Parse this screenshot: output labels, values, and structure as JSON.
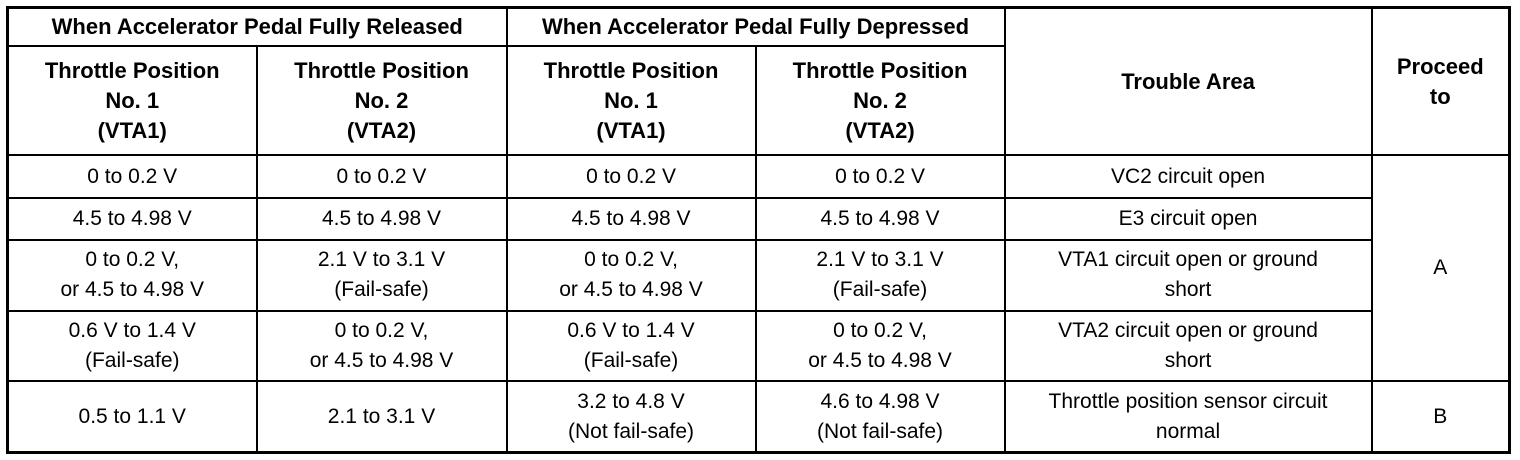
{
  "table": {
    "group_headers": {
      "released": "When Accelerator Pedal Fully Released",
      "depressed": "When Accelerator Pedal Fully Depressed"
    },
    "sub_headers": [
      [
        "Throttle Position",
        "No. 1",
        "(VTA1)"
      ],
      [
        "Throttle Position",
        "No. 2",
        "(VTA2)"
      ],
      [
        "Throttle Position",
        "No. 1",
        "(VTA1)"
      ],
      [
        "Throttle Position",
        "No. 2",
        "(VTA2)"
      ]
    ],
    "trouble_area_header": "Trouble Area",
    "proceed_header": [
      "Proceed",
      "to"
    ],
    "rows": [
      {
        "cells": [
          [
            "0 to 0.2 V"
          ],
          [
            "0 to 0.2 V"
          ],
          [
            "0 to 0.2 V"
          ],
          [
            "0 to 0.2 V"
          ]
        ],
        "trouble": [
          "VC2 circuit open"
        ]
      },
      {
        "cells": [
          [
            "4.5 to 4.98 V"
          ],
          [
            "4.5 to 4.98 V"
          ],
          [
            "4.5 to 4.98 V"
          ],
          [
            "4.5 to 4.98 V"
          ]
        ],
        "trouble": [
          "E3 circuit open"
        ]
      },
      {
        "cells": [
          [
            "0 to 0.2 V,",
            "or 4.5 to 4.98 V"
          ],
          [
            "2.1 V to 3.1 V",
            "(Fail-safe)"
          ],
          [
            "0 to 0.2 V,",
            "or 4.5 to 4.98 V"
          ],
          [
            "2.1 V to 3.1 V",
            "(Fail-safe)"
          ]
        ],
        "trouble": [
          "VTA1 circuit open or ground",
          "short"
        ]
      },
      {
        "cells": [
          [
            "0.6 V to 1.4 V",
            "(Fail-safe)"
          ],
          [
            "0 to 0.2 V,",
            "or 4.5 to 4.98 V"
          ],
          [
            "0.6 V to 1.4 V",
            "(Fail-safe)"
          ],
          [
            "0 to 0.2 V,",
            "or 4.5 to 4.98 V"
          ]
        ],
        "trouble": [
          "VTA2 circuit open or ground",
          "short"
        ]
      },
      {
        "cells": [
          [
            "0.5 to 1.1 V"
          ],
          [
            "2.1 to 3.1 V"
          ],
          [
            "3.2 to 4.8 V",
            "(Not fail-safe)"
          ],
          [
            "4.6 to 4.98 V",
            "(Not fail-safe)"
          ]
        ],
        "trouble": [
          "Throttle position sensor circuit",
          "normal"
        ]
      }
    ],
    "proceed": [
      "A",
      "B"
    ]
  }
}
